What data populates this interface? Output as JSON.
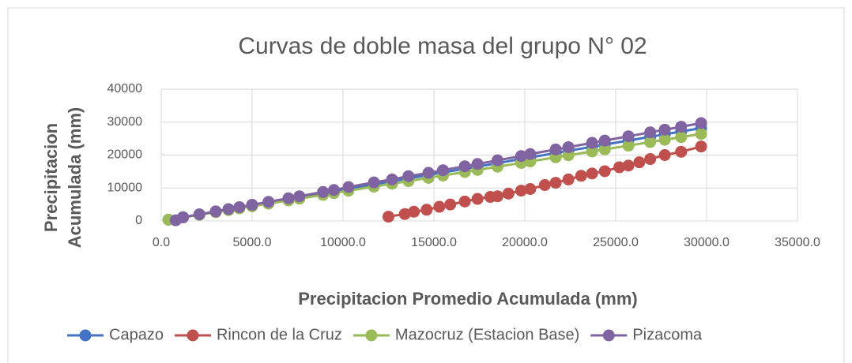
{
  "chart_data": {
    "type": "scatter-line",
    "title": "Curvas de doble masa del grupo N° 02",
    "xlabel": "Precipitacion Promedio Acumulada (mm)",
    "ylabel": "Precipitacion Acumulada (mm)",
    "xlim": [
      0,
      35000
    ],
    "xticks": [
      {
        "value": 0,
        "label": "0.0"
      },
      {
        "value": 5000,
        "label": "5000.0"
      },
      {
        "value": 10000,
        "label": "10000.0"
      },
      {
        "value": 15000,
        "label": "15000.0"
      },
      {
        "value": 20000,
        "label": "20000.0"
      },
      {
        "value": 25000,
        "label": "25000.0"
      },
      {
        "value": 30000,
        "label": "30000.0"
      },
      {
        "value": 35000,
        "label": "35000.0"
      }
    ],
    "ylim": [
      0,
      40000
    ],
    "yticks": [
      0,
      10000,
      20000,
      30000,
      40000
    ],
    "grid": true,
    "legend": "bottom",
    "series": [
      {
        "name": "Capazo",
        "color": "#4472c4",
        "x": [
          400,
          1200,
          2100,
          3000,
          3700,
          4300,
          5000,
          5900,
          7000,
          7600,
          8900,
          9500,
          10300,
          11700,
          12700,
          13600,
          14700,
          15500,
          16700,
          17400,
          18500,
          19800,
          20300,
          21700,
          22400,
          23700,
          24400,
          25700,
          26900,
          27700,
          28600,
          29700
        ],
        "values": [
          400,
          1150,
          2000,
          2850,
          3500,
          4100,
          4750,
          5600,
          6650,
          7200,
          8450,
          9000,
          9800,
          11100,
          12050,
          12900,
          13950,
          14700,
          15850,
          16500,
          17550,
          18800,
          19300,
          20600,
          21300,
          22500,
          23200,
          24400,
          25550,
          26300,
          27150,
          28200
        ]
      },
      {
        "name": "Rincon de la Cruz",
        "color": "#c0504d",
        "x": [
          12500,
          13400,
          13900,
          14600,
          15300,
          15900,
          16700,
          17400,
          18100,
          18500,
          19100,
          19800,
          20300,
          21100,
          21700,
          22400,
          23100,
          23700,
          24400,
          25200,
          25700,
          26300,
          26900,
          27700,
          28600,
          29700
        ],
        "values": [
          1300,
          2100,
          2800,
          3400,
          4300,
          5000,
          5900,
          6700,
          7300,
          7500,
          8300,
          9200,
          9700,
          10900,
          11600,
          12600,
          13700,
          14400,
          15100,
          16300,
          16800,
          17800,
          18800,
          20000,
          21000,
          22600
        ]
      },
      {
        "name": "Mazocruz (Estacion Base)",
        "color": "#9bbb59",
        "x": [
          400,
          1200,
          2100,
          3000,
          3700,
          4300,
          5000,
          5900,
          7000,
          7600,
          8900,
          9500,
          10300,
          11700,
          12700,
          13600,
          14700,
          15500,
          16700,
          17400,
          18500,
          19800,
          20300,
          21700,
          22400,
          23700,
          24400,
          25700,
          26900,
          27700,
          28600,
          29700
        ],
        "values": [
          360,
          1070,
          1870,
          2670,
          3290,
          3830,
          4450,
          5250,
          6230,
          6760,
          7920,
          8460,
          9170,
          10410,
          11300,
          12100,
          13080,
          13800,
          14860,
          15490,
          16470,
          17620,
          18070,
          19310,
          19940,
          21090,
          21720,
          22870,
          23940,
          24650,
          25450,
          26430
        ]
      },
      {
        "name": "Pizacoma",
        "color": "#8064a2",
        "x": [
          800,
          1200,
          2100,
          3000,
          3700,
          4300,
          5000,
          5900,
          7000,
          7600,
          8900,
          9500,
          10300,
          11700,
          12700,
          13600,
          14700,
          15500,
          16700,
          17400,
          18500,
          19800,
          20300,
          21700,
          22400,
          23700,
          24400,
          25700,
          26900,
          27700,
          28600,
          29700
        ],
        "values": [
          200,
          1100,
          2000,
          2900,
          3600,
          4200,
          4900,
          5800,
          6900,
          7500,
          8800,
          9400,
          10300,
          11700,
          12600,
          13600,
          14600,
          15400,
          16600,
          17300,
          18400,
          19700,
          20300,
          21700,
          22400,
          23700,
          24400,
          25700,
          26900,
          27700,
          28600,
          29700
        ]
      }
    ]
  }
}
